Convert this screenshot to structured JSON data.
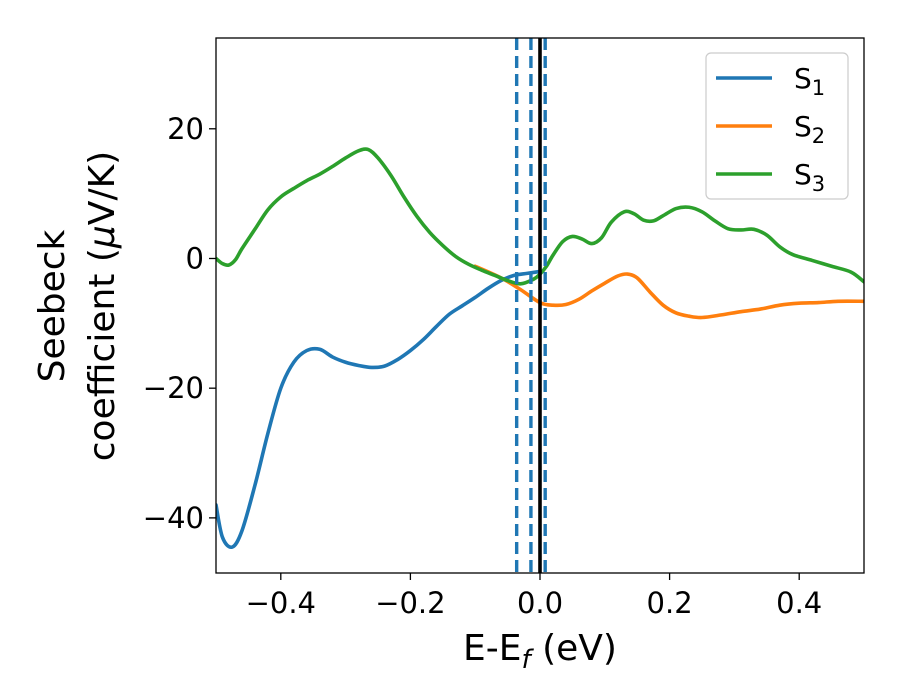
{
  "chart_data": {
    "type": "line",
    "xlabel": {
      "main": "E-E",
      "sub": "f",
      "unit": " (eV)"
    },
    "ylabel": {
      "line1": "Seebeck",
      "line2_pre": "coefficient  (",
      "mu": "μ",
      "line2_post": "V/K)"
    },
    "xlim": [
      -0.5,
      0.5
    ],
    "ylim": [
      -48.5,
      34
    ],
    "x_ticks": [
      -0.4,
      -0.2,
      0.0,
      0.2,
      0.4
    ],
    "x_tick_labels": [
      "−0.4",
      "−0.2",
      "0.0",
      "0.2",
      "0.4"
    ],
    "y_ticks": [
      -40,
      -20,
      0,
      20
    ],
    "y_tick_labels": [
      "−40",
      "−20",
      "0",
      "20"
    ],
    "grid": false,
    "legend": {
      "placement": "top-right"
    },
    "vertical_lines": [
      {
        "x": -0.036,
        "style": "dashed",
        "color": "#1f77b4"
      },
      {
        "x": -0.014,
        "style": "dashed",
        "color": "#1f77b4"
      },
      {
        "x": 0.008,
        "style": "dashed",
        "color": "#1f77b4"
      },
      {
        "x": 0.0,
        "style": "solid",
        "color": "#000000"
      }
    ],
    "series": [
      {
        "name": "S",
        "sub": "1",
        "color": "#1f77b4",
        "x": [
          -0.5,
          -0.49,
          -0.475,
          -0.46,
          -0.44,
          -0.42,
          -0.4,
          -0.38,
          -0.36,
          -0.34,
          -0.32,
          -0.3,
          -0.28,
          -0.26,
          -0.24,
          -0.22,
          -0.2,
          -0.18,
          -0.16,
          -0.14,
          -0.12,
          -0.1,
          -0.08,
          -0.06,
          -0.04,
          -0.02,
          0.0
        ],
        "y": [
          -38,
          -43,
          -44.5,
          -42,
          -35,
          -27,
          -20,
          -16,
          -14.2,
          -14,
          -15.2,
          -16,
          -16.5,
          -16.8,
          -16.6,
          -15.6,
          -14.2,
          -12.5,
          -10.5,
          -8.6,
          -7.3,
          -6.0,
          -4.6,
          -3.4,
          -2.6,
          -2.3,
          -2.0
        ]
      },
      {
        "name": "S",
        "sub": "2",
        "color": "#ff7f0e",
        "x": [
          -0.1,
          -0.06,
          -0.03,
          0.0,
          0.02,
          0.04,
          0.06,
          0.08,
          0.1,
          0.12,
          0.135,
          0.15,
          0.17,
          0.19,
          0.21,
          0.23,
          0.25,
          0.28,
          0.31,
          0.34,
          0.37,
          0.4,
          0.43,
          0.46,
          0.5
        ],
        "y": [
          -1.2,
          -3.0,
          -4.8,
          -6.8,
          -7.2,
          -7.1,
          -6.3,
          -5.0,
          -3.8,
          -2.7,
          -2.4,
          -3.0,
          -5.2,
          -7.2,
          -8.4,
          -8.9,
          -9.1,
          -8.7,
          -8.2,
          -7.8,
          -7.2,
          -6.9,
          -6.8,
          -6.6,
          -6.6
        ]
      },
      {
        "name": "S",
        "sub": "3",
        "color": "#2ca02c",
        "x": [
          -0.5,
          -0.49,
          -0.48,
          -0.47,
          -0.46,
          -0.44,
          -0.42,
          -0.4,
          -0.38,
          -0.36,
          -0.34,
          -0.32,
          -0.3,
          -0.28,
          -0.265,
          -0.25,
          -0.23,
          -0.21,
          -0.19,
          -0.17,
          -0.15,
          -0.13,
          -0.11,
          -0.09,
          -0.07,
          -0.05,
          -0.03,
          -0.01,
          0.0,
          0.01,
          0.02,
          0.035,
          0.05,
          0.065,
          0.08,
          0.095,
          0.11,
          0.13,
          0.145,
          0.16,
          0.175,
          0.19,
          0.21,
          0.23,
          0.25,
          0.27,
          0.29,
          0.31,
          0.33,
          0.35,
          0.37,
          0.39,
          0.42,
          0.45,
          0.48,
          0.5
        ],
        "y": [
          0.0,
          -0.8,
          -1.0,
          -0.2,
          1.5,
          4.5,
          7.5,
          9.5,
          10.8,
          12.0,
          13.0,
          14.2,
          15.5,
          16.6,
          16.8,
          15.5,
          12.8,
          9.5,
          6.5,
          4.0,
          2.0,
          0.3,
          -0.9,
          -1.8,
          -2.6,
          -3.4,
          -3.9,
          -3.2,
          -2.4,
          -1.2,
          0.5,
          2.6,
          3.4,
          3.0,
          2.3,
          3.2,
          5.6,
          7.2,
          6.9,
          5.9,
          5.8,
          6.6,
          7.7,
          7.9,
          7.2,
          5.8,
          4.6,
          4.4,
          4.5,
          3.6,
          1.8,
          0.6,
          -0.3,
          -1.2,
          -2.1,
          -3.6
        ]
      }
    ]
  }
}
